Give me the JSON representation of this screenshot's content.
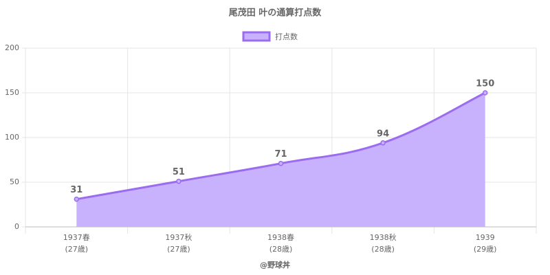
{
  "chart_data": {
    "type": "line",
    "title": "尾茂田 叶の通算打点数",
    "xlabel": "@野球丼",
    "categories": [
      [
        "1937春",
        "(27歳)"
      ],
      [
        "1937秋",
        "(27歳)"
      ],
      [
        "1938春",
        "(28歳)"
      ],
      [
        "1938秋",
        "(28歳)"
      ],
      [
        "1939",
        "(29歳)"
      ]
    ],
    "series": [
      {
        "name": "打点数",
        "color": "#9b6cf0",
        "fill": "#c9b2fd",
        "values": [
          31,
          51,
          71,
          94,
          150
        ]
      }
    ],
    "ylim": [
      0,
      200
    ],
    "yticks": [
      0,
      50,
      100,
      150,
      200
    ],
    "grid": true,
    "legend": "top",
    "data_labels": true
  }
}
